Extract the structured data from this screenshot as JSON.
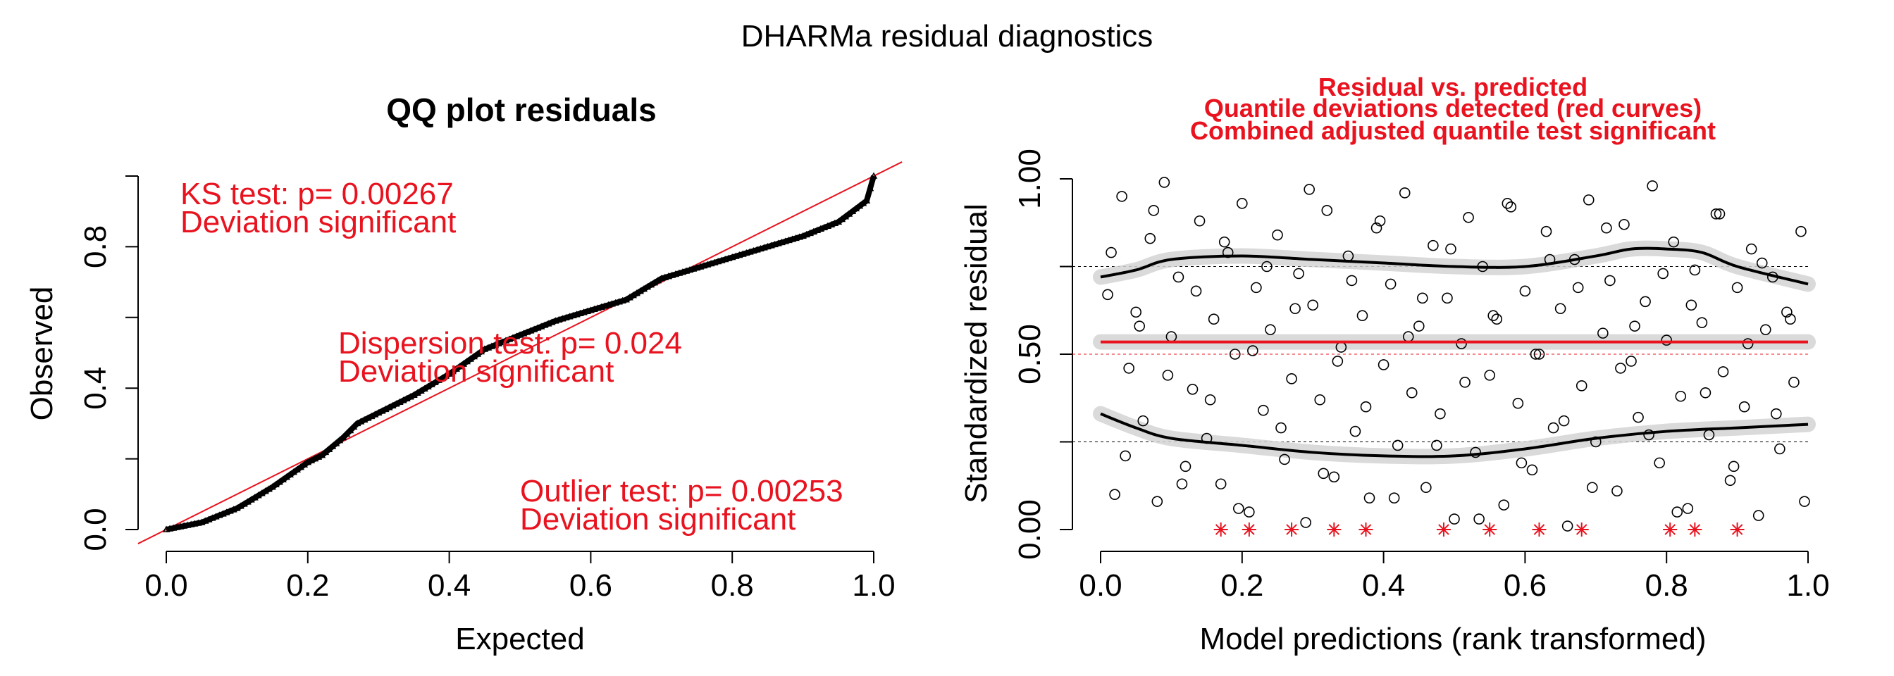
{
  "title": "DHARMa residual diagnostics",
  "colors": {
    "red": "#e8131f",
    "black": "#000000",
    "band": "#d3d3d3"
  },
  "chart_data": [
    {
      "type": "scatter",
      "title": "QQ plot residuals",
      "xlabel": "Expected",
      "ylabel": "Observed",
      "xlim": [
        0,
        1
      ],
      "ylim": [
        0,
        1
      ],
      "x_ticks": [
        "0.0",
        "0.2",
        "0.4",
        "0.6",
        "0.8",
        "1.0"
      ],
      "y_ticks": [
        "0.0",
        "0.4",
        "0.8"
      ],
      "qq_curve": {
        "x": [
          0.0,
          0.05,
          0.1,
          0.15,
          0.2,
          0.22,
          0.25,
          0.27,
          0.3,
          0.35,
          0.4,
          0.45,
          0.5,
          0.55,
          0.6,
          0.65,
          0.7,
          0.75,
          0.8,
          0.85,
          0.9,
          0.95,
          0.97,
          0.99,
          1.0
        ],
        "y": [
          0.0,
          0.02,
          0.06,
          0.12,
          0.19,
          0.21,
          0.26,
          0.3,
          0.33,
          0.38,
          0.44,
          0.51,
          0.55,
          0.59,
          0.62,
          0.65,
          0.71,
          0.74,
          0.77,
          0.8,
          0.83,
          0.87,
          0.9,
          0.93,
          1.0
        ]
      },
      "reference_line": {
        "x": [
          -0.04,
          1.04
        ],
        "y": [
          -0.04,
          1.04
        ]
      },
      "annotations": [
        {
          "line1": "KS test: p= 0.00267",
          "line2": "Deviation  significant"
        },
        {
          "line1": "Dispersion test: p= 0.024",
          "line2": "Deviation  significant"
        },
        {
          "line1": "Outlier test: p= 0.00253",
          "line2": "Deviation  significant"
        }
      ]
    },
    {
      "type": "scatter",
      "title_lines": [
        "Residual vs. predicted",
        "Quantile deviations detected (red curves)",
        "Combined adjusted quantile test significant"
      ],
      "xlabel": "Model predictions (rank transformed)",
      "ylabel": "Standardized residual",
      "xlim": [
        0,
        1
      ],
      "ylim": [
        0,
        1
      ],
      "x_ticks": [
        "0.0",
        "0.2",
        "0.4",
        "0.6",
        "0.8",
        "1.0"
      ],
      "y_ticks": [
        "0.00",
        "0.50",
        "1.00"
      ],
      "reference_lines": [
        0.25,
        0.5,
        0.75
      ],
      "quantile_curves": [
        {
          "quantile": 0.25,
          "color": "black",
          "x": [
            0,
            0.05,
            0.1,
            0.2,
            0.3,
            0.4,
            0.5,
            0.6,
            0.7,
            0.8,
            0.9,
            1.0
          ],
          "y": [
            0.33,
            0.29,
            0.26,
            0.24,
            0.22,
            0.21,
            0.21,
            0.23,
            0.26,
            0.28,
            0.29,
            0.3
          ]
        },
        {
          "quantile": 0.5,
          "color": "red",
          "x": [
            0,
            0.25,
            0.5,
            0.75,
            1.0
          ],
          "y": [
            0.535,
            0.535,
            0.535,
            0.535,
            0.535
          ]
        },
        {
          "quantile": 0.75,
          "color": "black",
          "x": [
            0,
            0.05,
            0.1,
            0.2,
            0.3,
            0.4,
            0.5,
            0.6,
            0.7,
            0.75,
            0.8,
            0.85,
            0.9,
            1.0
          ],
          "y": [
            0.72,
            0.74,
            0.77,
            0.78,
            0.77,
            0.76,
            0.75,
            0.75,
            0.78,
            0.8,
            0.8,
            0.79,
            0.75,
            0.7
          ]
        }
      ],
      "residuals": {
        "x": [
          0.01,
          0.02,
          0.03,
          0.04,
          0.05,
          0.06,
          0.07,
          0.08,
          0.09,
          0.1,
          0.11,
          0.12,
          0.13,
          0.14,
          0.15,
          0.16,
          0.17,
          0.18,
          0.19,
          0.2,
          0.21,
          0.22,
          0.23,
          0.24,
          0.25,
          0.26,
          0.27,
          0.28,
          0.29,
          0.3,
          0.31,
          0.32,
          0.33,
          0.34,
          0.35,
          0.36,
          0.37,
          0.38,
          0.39,
          0.4,
          0.41,
          0.42,
          0.43,
          0.44,
          0.45,
          0.46,
          0.47,
          0.48,
          0.49,
          0.5,
          0.51,
          0.52,
          0.53,
          0.54,
          0.55,
          0.56,
          0.57,
          0.58,
          0.59,
          0.6,
          0.61,
          0.62,
          0.63,
          0.64,
          0.65,
          0.66,
          0.67,
          0.68,
          0.69,
          0.7,
          0.71,
          0.72,
          0.73,
          0.74,
          0.75,
          0.76,
          0.77,
          0.78,
          0.79,
          0.8,
          0.81,
          0.82,
          0.83,
          0.84,
          0.85,
          0.86,
          0.87,
          0.88,
          0.89,
          0.9,
          0.91,
          0.92,
          0.93,
          0.94,
          0.95,
          0.96,
          0.97,
          0.98,
          0.99,
          0.015,
          0.035,
          0.055,
          0.075,
          0.095,
          0.115,
          0.135,
          0.155,
          0.175,
          0.195,
          0.215,
          0.235,
          0.255,
          0.275,
          0.295,
          0.315,
          0.335,
          0.355,
          0.375,
          0.395,
          0.415,
          0.435,
          0.455,
          0.475,
          0.495,
          0.515,
          0.535,
          0.555,
          0.575,
          0.595,
          0.615,
          0.635,
          0.655,
          0.675,
          0.695,
          0.715,
          0.735,
          0.755,
          0.775,
          0.795,
          0.815,
          0.835,
          0.855,
          0.875,
          0.895,
          0.915,
          0.935,
          0.955,
          0.975,
          0.995
        ],
        "y": [
          0.67,
          0.1,
          0.95,
          0.46,
          0.62,
          0.31,
          0.83,
          0.08,
          0.99,
          0.55,
          0.72,
          0.18,
          0.4,
          0.88,
          0.26,
          0.6,
          0.13,
          0.79,
          0.5,
          0.93,
          0.05,
          0.69,
          0.34,
          0.57,
          0.84,
          0.2,
          0.43,
          0.73,
          0.02,
          0.64,
          0.37,
          0.91,
          0.15,
          0.52,
          0.78,
          0.28,
          0.61,
          0.09,
          0.86,
          0.47,
          0.7,
          0.24,
          0.96,
          0.39,
          0.58,
          0.12,
          0.81,
          0.33,
          0.66,
          0.03,
          0.53,
          0.89,
          0.22,
          0.75,
          0.44,
          0.6,
          0.07,
          0.92,
          0.36,
          0.68,
          0.17,
          0.5,
          0.85,
          0.29,
          0.63,
          0.01,
          0.77,
          0.41,
          0.94,
          0.25,
          0.56,
          0.71,
          0.11,
          0.87,
          0.48,
          0.32,
          0.65,
          0.98,
          0.19,
          0.54,
          0.82,
          0.38,
          0.06,
          0.74,
          0.59,
          0.27,
          0.9,
          0.45,
          0.14,
          0.69,
          0.35,
          0.8,
          0.04,
          0.57,
          0.72,
          0.23,
          0.62,
          0.42,
          0.85,
          0.79,
          0.21,
          0.58,
          0.91,
          0.44,
          0.13,
          0.68,
          0.37,
          0.82,
          0.06,
          0.51,
          0.75,
          0.29,
          0.63,
          0.97,
          0.16,
          0.48,
          0.71,
          0.35,
          0.88,
          0.09,
          0.55,
          0.66,
          0.24,
          0.8,
          0.42,
          0.03,
          0.61,
          0.93,
          0.19,
          0.5,
          0.77,
          0.31,
          0.69,
          0.12,
          0.86,
          0.46,
          0.58,
          0.27,
          0.73,
          0.05,
          0.64,
          0.39,
          0.9,
          0.18,
          0.53,
          0.76,
          0.33,
          0.6,
          0.08
        ]
      },
      "outliers_x": [
        0.17,
        0.21,
        0.27,
        0.33,
        0.375,
        0.485,
        0.55,
        0.62,
        0.68,
        0.805,
        0.84,
        0.9
      ],
      "outlier_y": 0.0
    }
  ]
}
